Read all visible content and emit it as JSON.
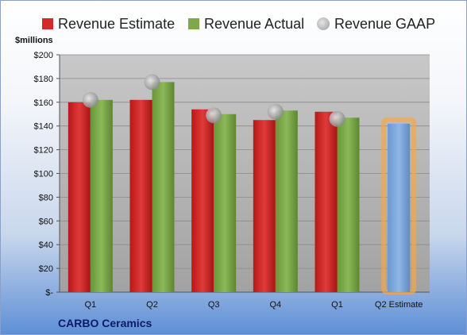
{
  "legend": {
    "estimate": "Revenue Estimate",
    "actual": "Revenue Actual",
    "gaap": "Revenue GAAP"
  },
  "unit_label": "$millions",
  "company": "CARBO Ceramics",
  "colors": {
    "estimate": "#d42a2a",
    "actual": "#7fa84a",
    "gaap": "#a9a9a9",
    "future_estimate": "#7da7d9",
    "future_glow": "#f4a64a"
  },
  "chart_data": {
    "type": "bar",
    "categories": [
      "Q1",
      "Q2",
      "Q3",
      "Q4",
      "Q1",
      "Q2 Estimate"
    ],
    "series": [
      {
        "name": "Revenue Estimate",
        "values": [
          160,
          162,
          154,
          145,
          152,
          142
        ]
      },
      {
        "name": "Revenue Actual",
        "values": [
          162,
          177,
          150,
          153,
          147,
          null
        ]
      },
      {
        "name": "Revenue GAAP",
        "values": [
          162,
          177,
          149,
          152,
          146,
          null
        ]
      }
    ],
    "ylabel": "$millions",
    "ylim": [
      0,
      200
    ],
    "yticks": [
      "$-",
      "$20",
      "$40",
      "$60",
      "$80",
      "$100",
      "$120",
      "$140",
      "$160",
      "$180",
      "$200"
    ],
    "legend_position": "top",
    "grid": true
  }
}
